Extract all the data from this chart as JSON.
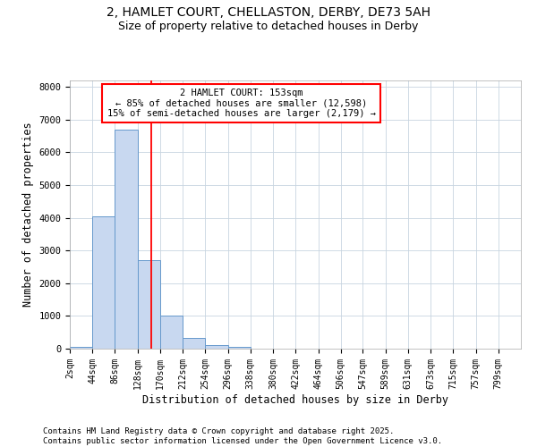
{
  "title_line1": "2, HAMLET COURT, CHELLASTON, DERBY, DE73 5AH",
  "title_line2": "Size of property relative to detached houses in Derby",
  "xlabel": "Distribution of detached houses by size in Derby",
  "ylabel": "Number of detached properties",
  "bar_edges": [
    2,
    44,
    86,
    128,
    170,
    212,
    254,
    296,
    338,
    380,
    422,
    464,
    506,
    547,
    589,
    631,
    673,
    715,
    757,
    799,
    841
  ],
  "bar_values": [
    50,
    4050,
    6700,
    2700,
    1000,
    330,
    120,
    50,
    0,
    0,
    0,
    0,
    0,
    0,
    0,
    0,
    0,
    0,
    0,
    0
  ],
  "bar_color": "#c8d8f0",
  "bar_edgecolor": "#6699cc",
  "grid_color": "#c8d4e0",
  "background_color": "#ffffff",
  "plot_bg_color": "#ffffff",
  "red_line_x": 153,
  "annotation_text": "2 HAMLET COURT: 153sqm\n← 85% of detached houses are smaller (12,598)\n15% of semi-detached houses are larger (2,179) →",
  "ylim": [
    0,
    8200
  ],
  "yticks": [
    0,
    1000,
    2000,
    3000,
    4000,
    5000,
    6000,
    7000,
    8000
  ],
  "footer_line1": "Contains HM Land Registry data © Crown copyright and database right 2025.",
  "footer_line2": "Contains public sector information licensed under the Open Government Licence v3.0.",
  "title_fontsize": 10,
  "subtitle_fontsize": 9,
  "tick_fontsize": 7,
  "label_fontsize": 8.5,
  "footer_fontsize": 6.5
}
